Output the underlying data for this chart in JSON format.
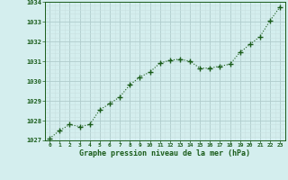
{
  "x": [
    0,
    1,
    2,
    3,
    4,
    5,
    6,
    7,
    8,
    9,
    10,
    11,
    12,
    13,
    14,
    15,
    16,
    17,
    18,
    19,
    20,
    21,
    22,
    23
  ],
  "y": [
    1027.1,
    1027.5,
    1027.8,
    1027.7,
    1027.8,
    1028.55,
    1028.85,
    1029.2,
    1029.8,
    1030.2,
    1030.45,
    1030.9,
    1031.05,
    1031.1,
    1031.0,
    1030.65,
    1030.65,
    1030.75,
    1030.85,
    1031.45,
    1031.85,
    1032.25,
    1033.05,
    1033.75
  ],
  "line_color": "#1a5c1a",
  "marker_color": "#1a5c1a",
  "background_color": "#d4eeee",
  "grid_major_color": "#b0cccc",
  "grid_minor_color": "#c8e0e0",
  "xlabel": "Graphe pression niveau de la mer (hPa)",
  "xlabel_color": "#1a5c1a",
  "tick_color": "#1a5c1a",
  "spine_color": "#1a5c1a",
  "ylim": [
    1027.0,
    1034.0
  ],
  "xlim": [
    -0.5,
    23.5
  ],
  "yticks": [
    1027,
    1028,
    1029,
    1030,
    1031,
    1032,
    1033,
    1034
  ],
  "xticks": [
    0,
    1,
    2,
    3,
    4,
    5,
    6,
    7,
    8,
    9,
    10,
    11,
    12,
    13,
    14,
    15,
    16,
    17,
    18,
    19,
    20,
    21,
    22,
    23
  ]
}
